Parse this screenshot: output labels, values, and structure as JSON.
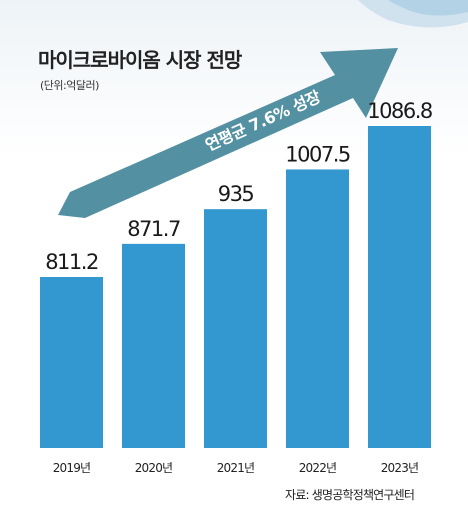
{
  "colors": {
    "bar": "#3298cf",
    "arrow": "#4a8a9c",
    "text": "#1a1a1a"
  },
  "title": "마이크로바이옴 시장 전망",
  "unit": "(단위:억달러)",
  "growth_label": "연평균 7.6% 성장",
  "source": "자료: 생명공학정책연구센터",
  "chart_data": {
    "type": "bar",
    "title": "마이크로바이옴 시장 전망",
    "categories": [
      "2019년",
      "2020년",
      "2021년",
      "2022년",
      "2023년"
    ],
    "values": [
      811.2,
      871.7,
      935,
      1007.5,
      1086.8
    ],
    "value_labels": [
      "811.2",
      "871.7",
      "935",
      "1007.5",
      "1086.8"
    ],
    "xlabel": "",
    "ylabel": "",
    "grid": false,
    "annotations": [
      "연평균 7.6% 성장"
    ]
  }
}
